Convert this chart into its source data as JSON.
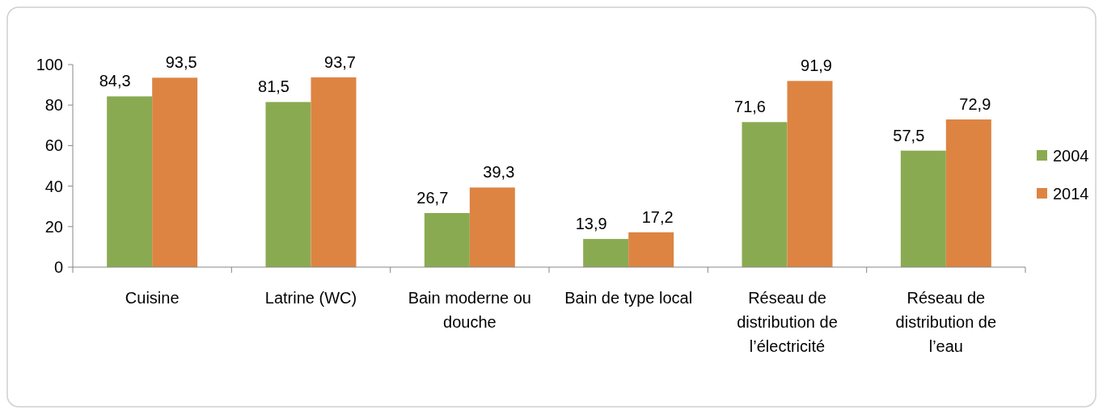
{
  "chart_data": {
    "type": "bar",
    "categories": [
      "Cuisine",
      "Latrine (WC)",
      "Bain moderne ou douche",
      "Bain de type local",
      "Réseau de distribution de l’électricité",
      "Réseau de distribution de l’eau"
    ],
    "series": [
      {
        "name": "2004",
        "color": "#8aaa52",
        "values": [
          84.3,
          81.5,
          26.7,
          13.9,
          71.6,
          57.5
        ],
        "value_labels": [
          "84,3",
          "81,5",
          "26,7",
          "13,9",
          "71,6",
          "57,5"
        ]
      },
      {
        "name": "2014",
        "color": "#dd8442",
        "values": [
          93.5,
          93.7,
          39.3,
          17.2,
          91.9,
          72.9
        ],
        "value_labels": [
          "93,5",
          "93,7",
          "39,3",
          "17,2",
          "91,9",
          "72,9"
        ]
      }
    ],
    "ylim": [
      0,
      100
    ],
    "yticks": [
      0,
      20,
      40,
      60,
      80,
      100
    ],
    "grid": false,
    "legend": "right"
  }
}
